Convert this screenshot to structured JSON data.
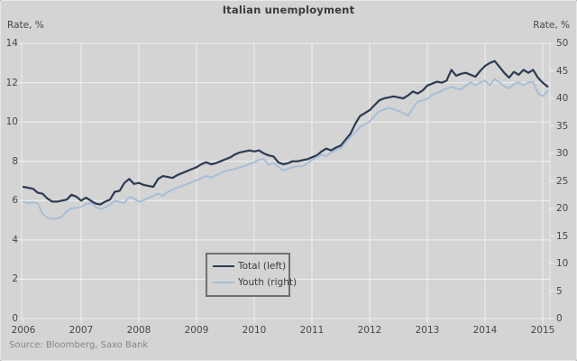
{
  "source": {
    "text": "Source: Bloomberg, Saxo Bank"
  },
  "colors": {
    "background": "#d4d4d4",
    "gridline": "#f1f1f1",
    "text": "#474747",
    "total_line": "#2b3a52",
    "youth_line": "#a7bed8",
    "legend_border": "#6f6f6f"
  },
  "chart_data": {
    "type": "line",
    "title": "Italian unemployment",
    "frequency": "monthly",
    "x_start": "2006-01",
    "x_end": "2015-02",
    "grid": true,
    "legend_position": "bottom-center-box",
    "x_axis": {
      "tick_labels": [
        "2006",
        "2007",
        "2008",
        "2009",
        "2010",
        "2011",
        "2012",
        "2013",
        "2014",
        "2015"
      ]
    },
    "left_axis": {
      "label": "Rate, %",
      "range": [
        0,
        14
      ],
      "tick_step": 2,
      "ticks": [
        0,
        2,
        4,
        6,
        8,
        10,
        12,
        14
      ]
    },
    "right_axis": {
      "label": "Rate, %",
      "range": [
        0,
        50
      ],
      "tick_step": 5,
      "ticks": [
        0,
        5,
        10,
        15,
        20,
        25,
        30,
        35,
        40,
        45,
        50
      ]
    },
    "series": [
      {
        "name": "Total (left)",
        "axis": "left",
        "color": "#2b3a52",
        "values": [
          6.7,
          6.65,
          6.6,
          6.4,
          6.35,
          6.1,
          5.95,
          5.95,
          6.0,
          6.05,
          6.3,
          6.2,
          6.0,
          6.15,
          6.0,
          5.85,
          5.8,
          5.95,
          6.05,
          6.45,
          6.5,
          6.9,
          7.1,
          6.85,
          6.9,
          6.8,
          6.75,
          6.7,
          7.1,
          7.25,
          7.2,
          7.15,
          7.3,
          7.4,
          7.5,
          7.6,
          7.7,
          7.85,
          7.95,
          7.85,
          7.9,
          8.0,
          8.1,
          8.2,
          8.35,
          8.45,
          8.5,
          8.55,
          8.5,
          8.55,
          8.4,
          8.3,
          8.25,
          7.95,
          7.85,
          7.9,
          8.0,
          8.0,
          8.05,
          8.1,
          8.2,
          8.3,
          8.5,
          8.65,
          8.55,
          8.7,
          8.8,
          9.1,
          9.4,
          9.9,
          10.3,
          10.45,
          10.6,
          10.85,
          11.1,
          11.2,
          11.25,
          11.3,
          11.25,
          11.2,
          11.35,
          11.55,
          11.45,
          11.6,
          11.85,
          11.95,
          12.05,
          12.0,
          12.1,
          12.65,
          12.35,
          12.45,
          12.5,
          12.4,
          12.3,
          12.6,
          12.85,
          13.0,
          13.1,
          12.8,
          12.5,
          12.25,
          12.55,
          12.4,
          12.65,
          12.5,
          12.65,
          12.25,
          12.0,
          11.8
        ]
      },
      {
        "name": "Youth (right)",
        "axis": "right",
        "color": "#a7bed8",
        "values": [
          21.2,
          21.0,
          21.1,
          20.9,
          19.0,
          18.3,
          18.1,
          18.2,
          18.5,
          19.5,
          20.0,
          20.1,
          20.3,
          20.8,
          21.0,
          20.3,
          19.9,
          20.2,
          20.7,
          21.4,
          21.2,
          21.0,
          22.1,
          21.8,
          21.2,
          21.5,
          21.9,
          22.3,
          22.7,
          22.3,
          23.0,
          23.4,
          23.8,
          24.1,
          24.4,
          24.8,
          25.1,
          25.5,
          25.9,
          25.6,
          26.0,
          26.4,
          26.8,
          27.0,
          27.2,
          27.5,
          27.7,
          28.1,
          28.4,
          28.8,
          29.0,
          27.9,
          28.3,
          27.6,
          26.9,
          27.2,
          27.5,
          27.7,
          27.6,
          28.2,
          28.8,
          29.3,
          29.8,
          29.5,
          30.2,
          30.6,
          30.9,
          32.0,
          33.0,
          33.8,
          34.8,
          35.3,
          35.8,
          36.8,
          37.6,
          38.0,
          38.3,
          38.0,
          37.7,
          37.3,
          36.9,
          38.2,
          39.4,
          39.6,
          39.9,
          40.6,
          41.0,
          41.4,
          41.8,
          42.1,
          41.8,
          41.6,
          42.3,
          42.9,
          42.4,
          42.9,
          43.2,
          42.4,
          43.5,
          42.9,
          42.2,
          41.8,
          42.6,
          42.9,
          42.4,
          42.9,
          43.0,
          40.9,
          40.4,
          41.3
        ]
      }
    ]
  }
}
